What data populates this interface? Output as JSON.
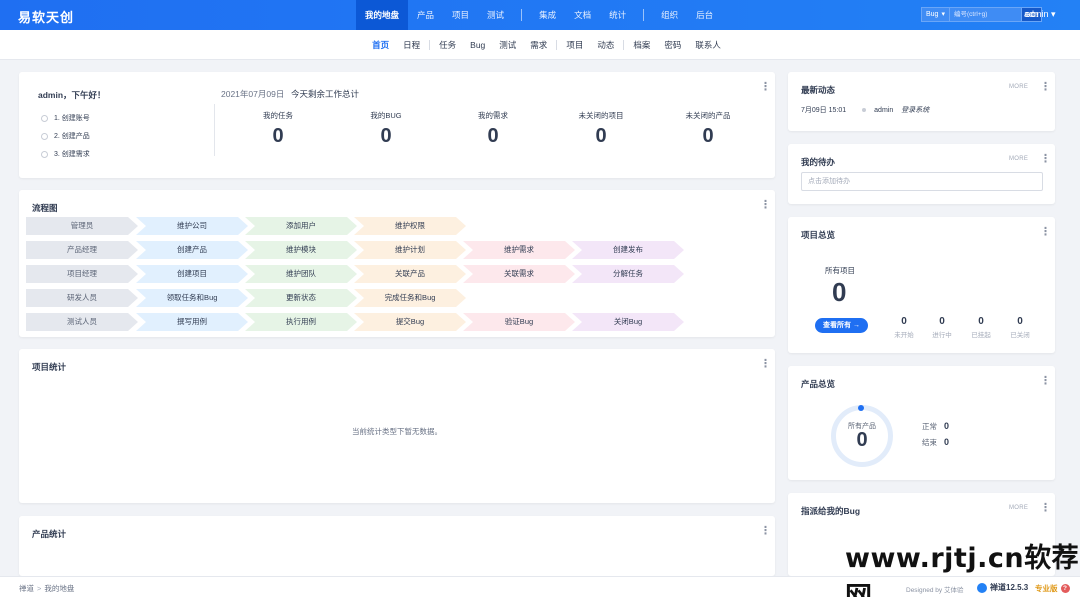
{
  "brand": "易软天创",
  "nav": {
    "group1": [
      "我的地盘",
      "产品",
      "项目",
      "测试"
    ],
    "group2": [
      "集成",
      "文档",
      "统计"
    ],
    "group3": [
      "组织",
      "后台"
    ],
    "active": "我的地盘"
  },
  "search": {
    "type": "Bug",
    "placeholder": "编号(ctrl+g)",
    "go": "GO!"
  },
  "user": "admin",
  "subnav": {
    "group1": [
      "首页",
      "日程"
    ],
    "group2": [
      "任务",
      "Bug",
      "测试",
      "需求"
    ],
    "group3": [
      "项目",
      "动态"
    ],
    "group4": [
      "档案",
      "密码",
      "联系人"
    ]
  },
  "welcome": {
    "greeting": "admin，下午好！",
    "steps": [
      "1. 创建账号",
      "2. 创建产品",
      "3. 创建需求"
    ],
    "date": "2021年07月09日",
    "today_label": "今天剩余工作总计",
    "stats": [
      {
        "label": "我的任务",
        "value": "0"
      },
      {
        "label": "我的BUG",
        "value": "0"
      },
      {
        "label": "我的需求",
        "value": "0"
      },
      {
        "label": "未关闭的项目",
        "value": "0"
      },
      {
        "label": "未关闭的产品",
        "value": "0"
      }
    ]
  },
  "flow": {
    "title": "流程图",
    "rows": [
      {
        "role": "管理员",
        "steps": [
          [
            "维护公司",
            "blue"
          ],
          [
            "添加用户",
            "green"
          ],
          [
            "维护权限",
            "orange"
          ]
        ]
      },
      {
        "role": "产品经理",
        "steps": [
          [
            "创建产品",
            "blue"
          ],
          [
            "维护模块",
            "green"
          ],
          [
            "维护计划",
            "orange"
          ],
          [
            "维护需求",
            "pink"
          ],
          [
            "创建发布",
            "purple"
          ]
        ]
      },
      {
        "role": "项目经理",
        "steps": [
          [
            "创建项目",
            "blue"
          ],
          [
            "维护团队",
            "green"
          ],
          [
            "关联产品",
            "orange"
          ],
          [
            "关联需求",
            "pink"
          ],
          [
            "分解任务",
            "purple"
          ]
        ]
      },
      {
        "role": "研发人员",
        "steps": [
          [
            "领取任务和Bug",
            "blue"
          ],
          [
            "更新状态",
            "green"
          ],
          [
            "完成任务和Bug",
            "orange"
          ]
        ]
      },
      {
        "role": "测试人员",
        "steps": [
          [
            "撰写用例",
            "blue"
          ],
          [
            "执行用例",
            "green"
          ],
          [
            "提交Bug",
            "orange"
          ],
          [
            "验证Bug",
            "pink"
          ],
          [
            "关闭Bug",
            "purple"
          ]
        ]
      }
    ]
  },
  "project_stats": {
    "title": "项目统计",
    "empty": "当前统计类型下暂无数据。"
  },
  "product_stats": {
    "title": "产品统计"
  },
  "latest": {
    "title": "最新动态",
    "more": "MORE",
    "time": "7月09日 15:01",
    "actor": "admin",
    "action": "登录系统"
  },
  "todo": {
    "title": "我的待办",
    "more": "MORE",
    "placeholder": "点击添加待办"
  },
  "project_overview": {
    "title": "项目总览",
    "all_label": "所有项目",
    "all_value": "0",
    "view_all": "查看所有",
    "stats": [
      {
        "label": "未开始",
        "value": "0"
      },
      {
        "label": "进行中",
        "value": "0"
      },
      {
        "label": "已挂起",
        "value": "0"
      },
      {
        "label": "已关闭",
        "value": "0"
      }
    ]
  },
  "product_overview": {
    "title": "产品总览",
    "all_label": "所有产品",
    "all_value": "0",
    "normal_label": "正常",
    "normal_value": "0",
    "closed_label": "结束",
    "closed_value": "0"
  },
  "assigned_bugs": {
    "title": "指派给我的Bug",
    "more": "MORE"
  },
  "footer": {
    "crumb_root": "禅道",
    "crumb_current": "我的地盘",
    "designed_by": "Designed by 艾体验",
    "version": "禅道12.5.3",
    "edition": "专业版"
  },
  "watermark": "www.rjtj.cn软荐网"
}
